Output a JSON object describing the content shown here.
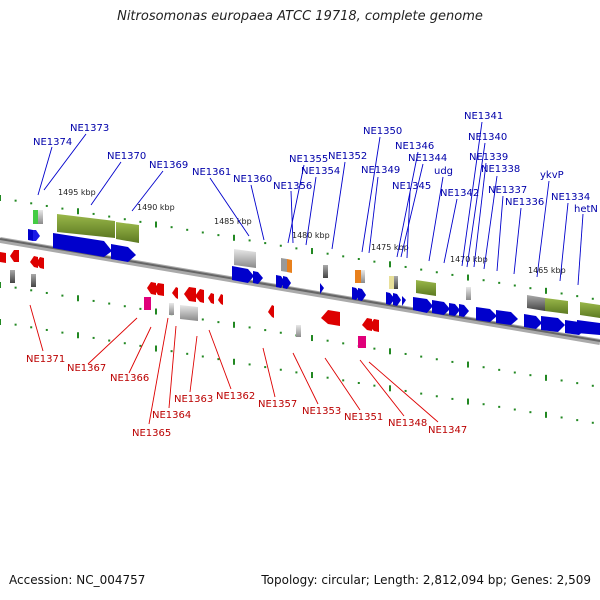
{
  "title": "Nitrosomonas europaea ATCC 19718, complete genome",
  "footer": {
    "accession": "Accession: NC_004757",
    "topology": "Topology: circular; Length: 2,812,094 bp; Genes: 2,509"
  },
  "colors": {
    "forward_strand": "#0000cc",
    "reverse_strand": "#dd0000",
    "label_forward": "#0000aa",
    "label_reverse": "#bb0000",
    "tick": "#228822",
    "rna_marker": "#e0007a",
    "backbone": "#777777"
  },
  "scale_labels": [
    "1495 kbp",
    "1490 kbp",
    "1485 kbp",
    "1480 kbp",
    "1475 kbp",
    "1470 kbp",
    "1465 kbp"
  ],
  "forward_genes": [
    "NE1374",
    "NE1373",
    "NE1370",
    "NE1369",
    "NE1361",
    "NE1360",
    "NE1355",
    "NE1356",
    "NE1354",
    "NE1352",
    "NE1350",
    "NE1349",
    "NE1346",
    "NE1344",
    "NE1345",
    "udg",
    "NE1342",
    "NE1341",
    "NE1340",
    "NE1339",
    "NE1338",
    "NE1337",
    "NE1336",
    "ykvP",
    "NE1334",
    "hetN"
  ],
  "reverse_genes": [
    "NE1371",
    "NE1367",
    "NE1366",
    "NE1365",
    "NE1364",
    "NE1363",
    "NE1362",
    "NE1357",
    "NE1353",
    "NE1351",
    "NE1348",
    "NE1347"
  ]
}
